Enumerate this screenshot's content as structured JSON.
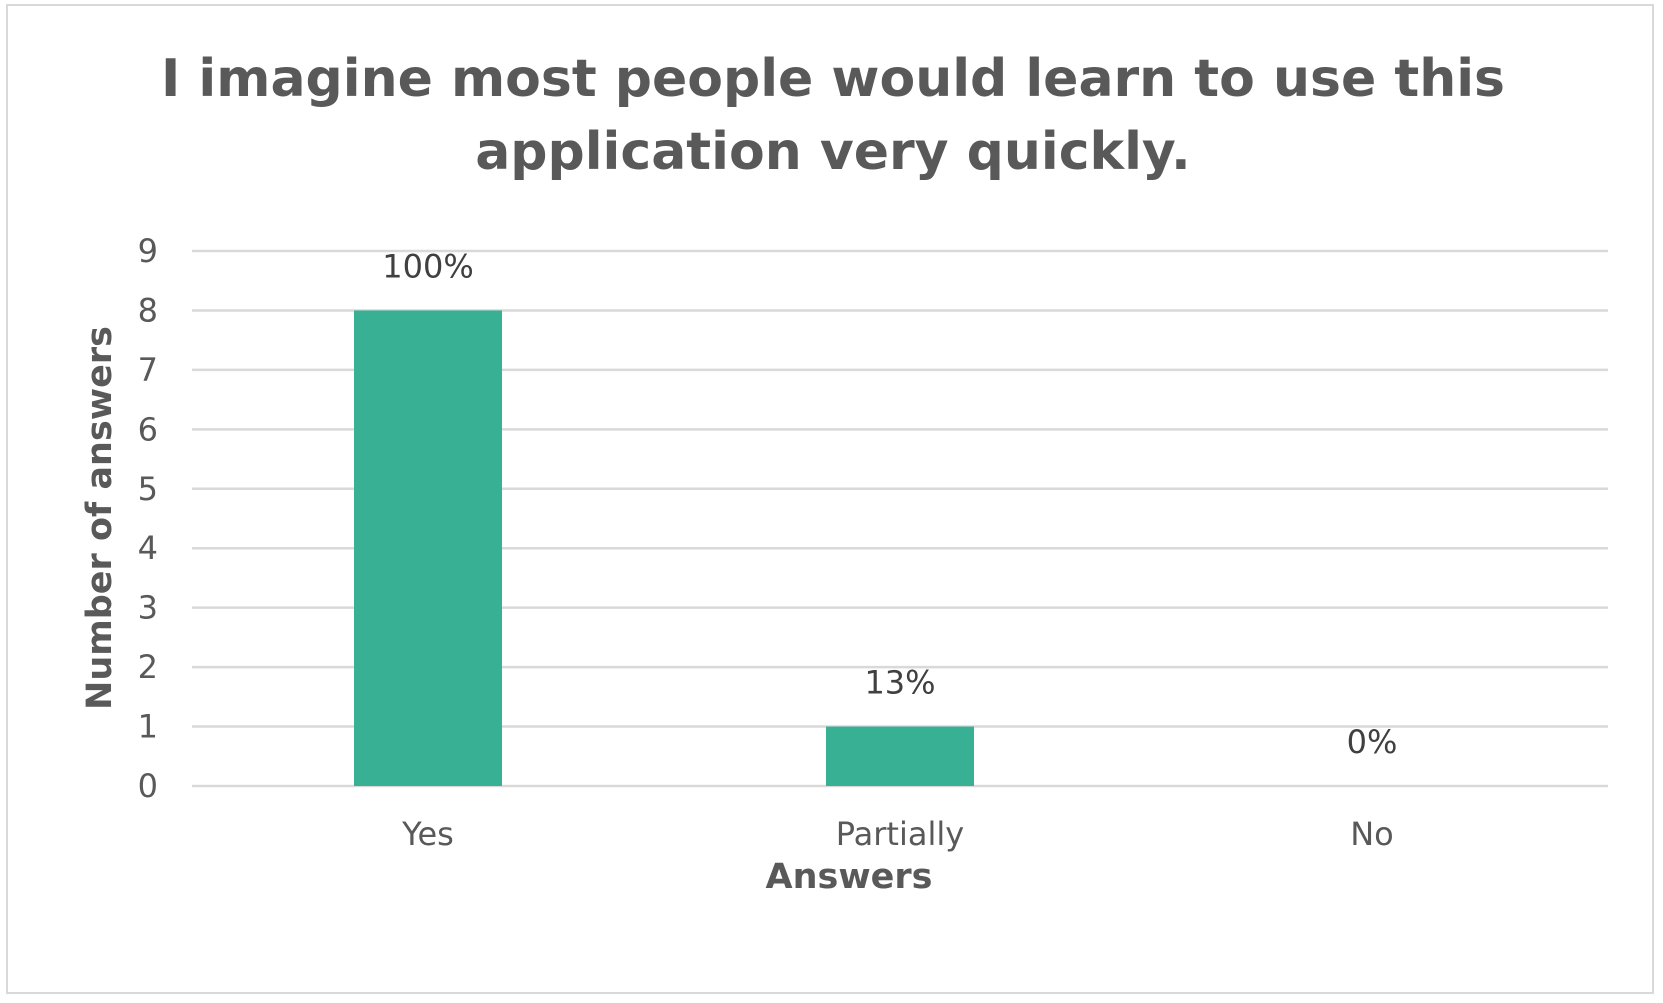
{
  "chart_data": {
    "type": "bar",
    "title_lines": [
      "I imagine most people would learn to use this",
      "application very quickly."
    ],
    "xlabel": "Answers",
    "ylabel": "Number of answers",
    "categories": [
      "Yes",
      "Partially",
      "No"
    ],
    "values": [
      8,
      1,
      0
    ],
    "data_labels": [
      "100%",
      "13%",
      "0%"
    ],
    "ylim": [
      0,
      9
    ],
    "yticks": [
      "0",
      "1",
      "2",
      "3",
      "4",
      "5",
      "6",
      "7",
      "8",
      "9"
    ],
    "grid": true,
    "legend": "none",
    "bar_color": "#37b094",
    "grid_color": "#d9d9d9",
    "text_color": "#595959"
  }
}
